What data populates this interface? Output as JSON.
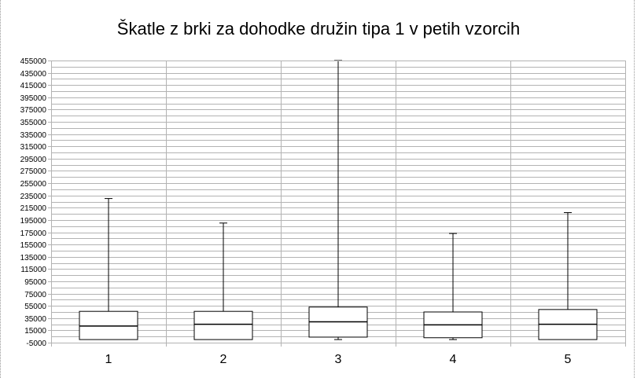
{
  "chart_data": {
    "type": "boxplot",
    "title": "Škatle z brki za dohodke družin tipa 1 v petih vzorcih",
    "xlabel": "",
    "ylabel": "",
    "categories": [
      "1",
      "2",
      "3",
      "4",
      "5"
    ],
    "ylim": [
      -5000,
      455000
    ],
    "y_ticks": [
      -5000,
      15000,
      35000,
      55000,
      75000,
      95000,
      115000,
      135000,
      155000,
      175000,
      195000,
      215000,
      235000,
      255000,
      275000,
      295000,
      315000,
      335000,
      355000,
      375000,
      395000,
      415000,
      435000,
      455000
    ],
    "y_minor_step": 10000,
    "boxes": [
      {
        "category": "1",
        "min": 0,
        "q1": 0,
        "median": 22000,
        "q3": 46000,
        "max": 230000
      },
      {
        "category": "2",
        "min": 0,
        "q1": 0,
        "median": 25000,
        "q3": 46000,
        "max": 190000
      },
      {
        "category": "3",
        "min": 0,
        "q1": 4000,
        "median": 29000,
        "q3": 53000,
        "max": 455000
      },
      {
        "category": "4",
        "min": 0,
        "q1": 3000,
        "median": 24000,
        "q3": 45000,
        "max": 173000
      },
      {
        "category": "5",
        "min": 0,
        "q1": 0,
        "median": 25000,
        "q3": 49000,
        "max": 207000
      }
    ],
    "grid": true,
    "legend": "none",
    "colors": {
      "grid": "#b3b3b3",
      "box": "#000000",
      "background": "#ffffff"
    }
  }
}
